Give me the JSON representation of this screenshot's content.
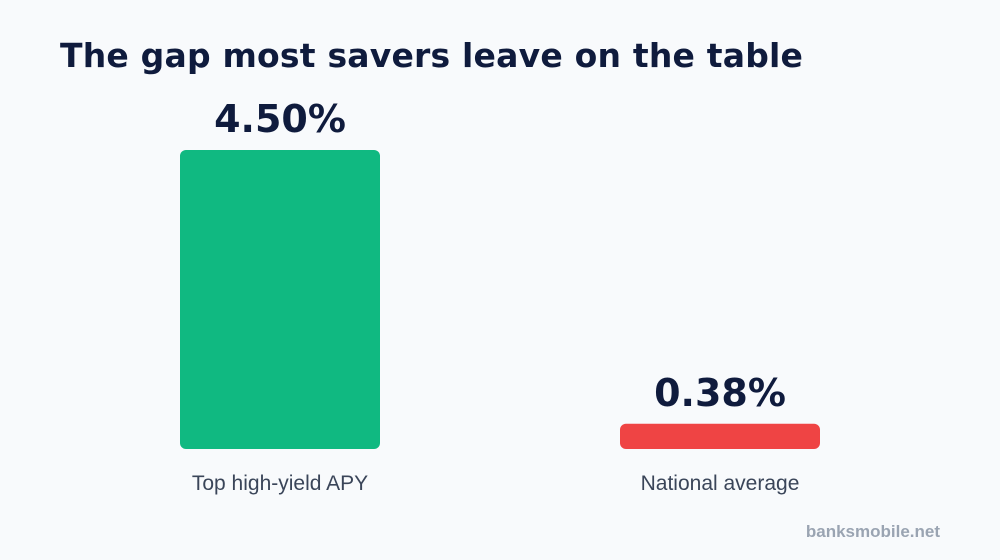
{
  "chart_data": {
    "type": "bar",
    "title": "The gap most savers leave on the table",
    "categories": [
      "Top high-yield APY",
      "National average"
    ],
    "values": [
      4.5,
      0.38
    ],
    "value_labels": [
      "4.50%",
      "0.38%"
    ],
    "colors": [
      "#10b981",
      "#ef4444"
    ],
    "ylim": [
      0,
      4.5
    ],
    "grid": false,
    "legend": "none"
  },
  "source": "banksmobile.net"
}
